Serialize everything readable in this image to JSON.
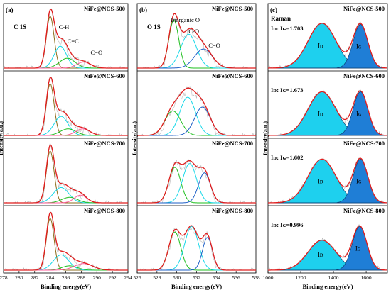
{
  "colors": {
    "envelope": "#e11d1d",
    "raw": "#b8b8b8",
    "green": "#1fbf1f",
    "cyan": "#18d8e8",
    "blue": "#1d5fc6",
    "brown": "#8b6b18",
    "pink": "#ff5a9a",
    "cyan_fill": "#1ed0ee",
    "blue_fill": "#1f7ed6"
  },
  "panels": [
    {
      "letter": "(a)",
      "spectrum": "C 1S",
      "ylabel": "Intensity(a.u.)",
      "xlabel": "Binding energy(eV)",
      "xticks": [
        "278",
        "280",
        "282",
        "284",
        "286",
        "288",
        "290",
        "292",
        "294"
      ]
    },
    {
      "letter": "(b)",
      "spectrum": "O 1S",
      "ylabel": "Intensity(a.u.)",
      "xlabel": "Binding energy(eV)",
      "xticks": [
        "526",
        "528",
        "530",
        "532",
        "534",
        "536",
        "538"
      ]
    },
    {
      "letter": "(c)",
      "spectrum": "Raman",
      "ylabel": "Intensity(a.u.)",
      "xlabel": "Binding energy(eV)",
      "xticks": [
        "1000",
        "1200",
        "1400",
        "1600"
      ]
    }
  ],
  "chart_data": [
    {
      "type": "line",
      "panel": "(a)",
      "title": "C 1S",
      "xlabel": "Binding energy(eV)",
      "ylabel": "Intensity(a.u.)",
      "xlim": [
        278,
        294
      ],
      "x_reversed": false,
      "grid": false,
      "subplots": [
        {
          "label": "NiFe@NCS-500",
          "annotations": [
            "C-H",
            "C=C",
            "C=O"
          ],
          "peaks": [
            {
              "color": "brown",
              "center": 284.0,
              "height": 0.95,
              "width": 0.5
            },
            {
              "color": "cyan",
              "center": 285.3,
              "height": 0.4,
              "width": 0.8
            },
            {
              "color": "green",
              "center": 286.2,
              "height": 0.18,
              "width": 1.0
            },
            {
              "color": "pink",
              "center": 288.3,
              "height": 0.11,
              "width": 0.9
            }
          ]
        },
        {
          "label": "NiFe@NCS-600",
          "annotations": [],
          "peaks": [
            {
              "color": "brown",
              "center": 284.0,
              "height": 0.95,
              "width": 0.5
            },
            {
              "color": "cyan",
              "center": 285.4,
              "height": 0.35,
              "width": 0.9
            },
            {
              "color": "green",
              "center": 286.3,
              "height": 0.12,
              "width": 1.0
            },
            {
              "color": "pink",
              "center": 288.2,
              "height": 0.12,
              "width": 0.9
            }
          ]
        },
        {
          "label": "NiFe@NCS-700",
          "annotations": [],
          "peaks": [
            {
              "color": "brown",
              "center": 284.0,
              "height": 0.95,
              "width": 0.5
            },
            {
              "color": "cyan",
              "center": 285.4,
              "height": 0.28,
              "width": 1.0
            },
            {
              "color": "green",
              "center": 286.5,
              "height": 0.1,
              "width": 1.0
            },
            {
              "color": "pink",
              "center": 287.9,
              "height": 0.14,
              "width": 0.8
            }
          ]
        },
        {
          "label": "NiFe@NCS-800",
          "annotations": [],
          "peaks": [
            {
              "color": "brown",
              "center": 284.0,
              "height": 0.95,
              "width": 0.5
            },
            {
              "color": "cyan",
              "center": 285.4,
              "height": 0.28,
              "width": 1.0
            },
            {
              "color": "green",
              "center": 286.5,
              "height": 0.08,
              "width": 1.0
            },
            {
              "color": "pink",
              "center": 288.3,
              "height": 0.12,
              "width": 1.2
            }
          ]
        }
      ]
    },
    {
      "type": "line",
      "panel": "(b)",
      "title": "O 1S",
      "xlabel": "Binding energy(eV)",
      "ylabel": "Intensity(a.u.)",
      "xlim": [
        526,
        538
      ],
      "x_reversed": false,
      "grid": false,
      "subplots": [
        {
          "label": "NiFe@NCS-500",
          "annotations": [
            "Inorganic O",
            "C-O",
            "C=O"
          ],
          "peaks": [
            {
              "color": "green",
              "center": 529.7,
              "height": 0.88,
              "width": 0.5
            },
            {
              "color": "cyan",
              "center": 531.2,
              "height": 0.62,
              "width": 0.8
            },
            {
              "color": "blue",
              "center": 532.7,
              "height": 0.35,
              "width": 0.9
            }
          ]
        },
        {
          "label": "NiFe@NCS-600",
          "annotations": [],
          "peaks": [
            {
              "color": "green",
              "center": 529.6,
              "height": 0.45,
              "width": 0.8
            },
            {
              "color": "cyan",
              "center": 531.1,
              "height": 0.7,
              "width": 0.8
            },
            {
              "color": "blue",
              "center": 532.6,
              "height": 0.52,
              "width": 0.8
            }
          ]
        },
        {
          "label": "NiFe@NCS-700",
          "annotations": [],
          "peaks": [
            {
              "color": "green",
              "center": 529.8,
              "height": 0.65,
              "width": 0.6
            },
            {
              "color": "cyan",
              "center": 531.3,
              "height": 0.72,
              "width": 0.7
            },
            {
              "color": "blue",
              "center": 532.8,
              "height": 0.55,
              "width": 0.6
            }
          ]
        },
        {
          "label": "NiFe@NCS-800",
          "annotations": [],
          "peaks": [
            {
              "color": "green",
              "center": 529.8,
              "height": 0.7,
              "width": 0.6
            },
            {
              "color": "cyan",
              "center": 531.5,
              "height": 0.8,
              "width": 0.7
            },
            {
              "color": "blue",
              "center": 533.1,
              "height": 0.6,
              "width": 0.5
            }
          ]
        }
      ]
    },
    {
      "type": "area",
      "panel": "(c)",
      "title": "Raman",
      "xlabel": "Binding energy(eV)",
      "ylabel": "Intensity(a.u.)",
      "xlim": [
        1000,
        1730
      ],
      "grid": false,
      "subplots": [
        {
          "label": "NiFe@NCS-500",
          "ratio_text": "Iᴅ: Iɢ=1.703",
          "id_id": 1.703,
          "bands": [
            {
              "name": "Iᴅ",
              "color": "cyan_fill",
              "center": 1330,
              "height": 0.82,
              "width": 85
            },
            {
              "name": "Iɢ",
              "color": "blue_fill",
              "center": 1565,
              "height": 0.8,
              "width": 45
            }
          ]
        },
        {
          "label": "NiFe@NCS-600",
          "ratio_text": "Iᴅ: Iɢ=1.673",
          "id_id": 1.673,
          "bands": [
            {
              "name": "Iᴅ",
              "color": "cyan_fill",
              "center": 1330,
              "height": 0.8,
              "width": 85
            },
            {
              "name": "Iɢ",
              "color": "blue_fill",
              "center": 1565,
              "height": 0.8,
              "width": 45
            }
          ]
        },
        {
          "label": "NiFe@NCS-700",
          "ratio_text": "Iᴅ: Iɢ=1.602",
          "id_id": 1.602,
          "bands": [
            {
              "name": "Iᴅ",
              "color": "cyan_fill",
              "center": 1330,
              "height": 0.8,
              "width": 85
            },
            {
              "name": "Iɢ",
              "color": "blue_fill",
              "center": 1565,
              "height": 0.8,
              "width": 45
            }
          ]
        },
        {
          "label": "NiFe@NCS-800",
          "ratio_text": "Iᴅ: Iɢ=0.996",
          "id_id": 0.996,
          "bands": [
            {
              "name": "Iᴅ",
              "color": "cyan_fill",
              "center": 1330,
              "height": 0.55,
              "width": 85
            },
            {
              "name": "Iɢ",
              "color": "blue_fill",
              "center": 1560,
              "height": 0.8,
              "width": 45
            }
          ]
        }
      ]
    }
  ]
}
